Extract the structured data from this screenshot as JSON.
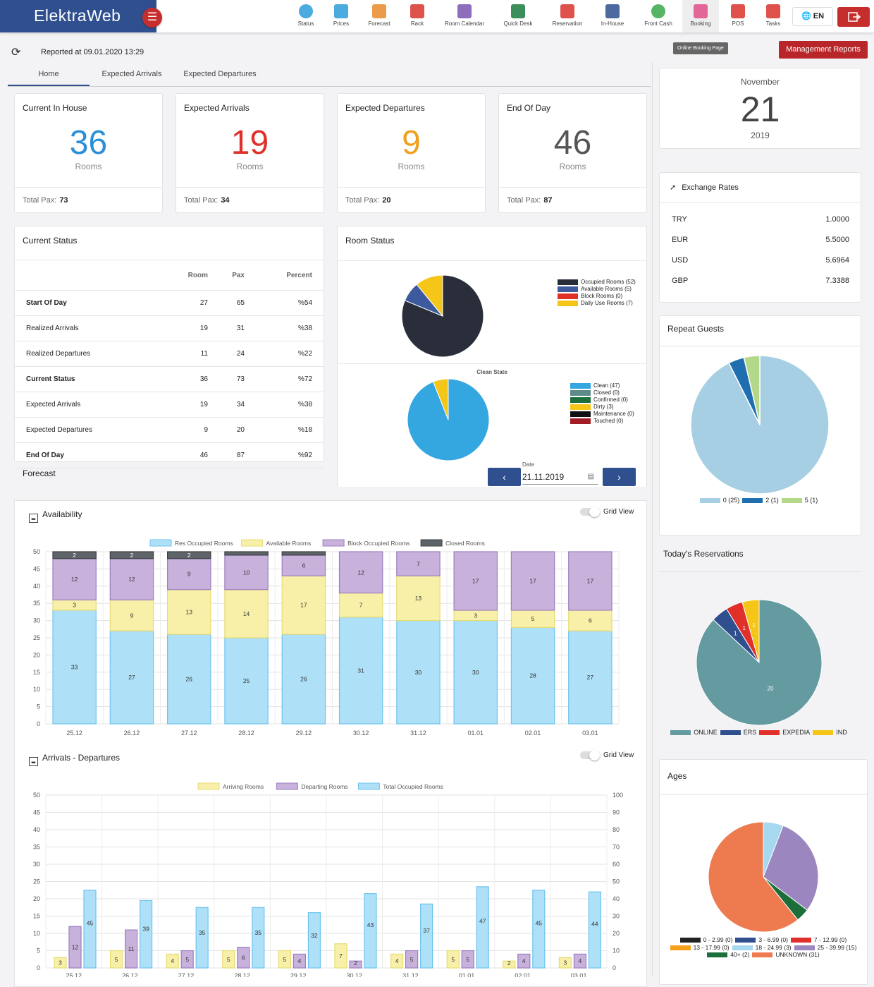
{
  "app": {
    "brand": "ElektraWeb",
    "lang": "EN"
  },
  "nav": [
    {
      "label": "Status",
      "icon": "status-icon",
      "color": "#2b9bd8"
    },
    {
      "label": "Prices",
      "icon": "prices-icon",
      "color": "#2b9bd8"
    },
    {
      "label": "Forecast",
      "icon": "forecast-icon",
      "color": "#e98a2c"
    },
    {
      "label": "Rack",
      "icon": "rack-icon",
      "color": "#d9342b"
    },
    {
      "label": "Room Calendar",
      "icon": "calendar-icon",
      "color": "#7a55b0"
    },
    {
      "label": "Quick Desk",
      "icon": "desk-icon",
      "color": "#1a7a3d"
    },
    {
      "label": "Reservation",
      "icon": "plane-icon",
      "color": "#d9342b"
    },
    {
      "label": "In-House",
      "icon": "bed-icon",
      "color": "#2f4f8f"
    },
    {
      "label": "Front Cash",
      "icon": "cash-icon",
      "color": "#3aa74a"
    },
    {
      "label": "Booking",
      "icon": "booking-icon",
      "color": "#e04e8a"
    },
    {
      "label": "POS",
      "icon": "pos-icon",
      "color": "#d9342b"
    },
    {
      "label": "Tasks",
      "icon": "tasks-icon",
      "color": "#d9342b"
    }
  ],
  "sub": {
    "reported": "Reported at 09.01.2020 13:29",
    "online": "Online Booking Page",
    "mgmt": "Management Reports"
  },
  "tabs": [
    "Home",
    "Expected Arrivals",
    "Expected Departures"
  ],
  "kpis": [
    {
      "title": "Current In House",
      "value": "36",
      "unit": "Rooms",
      "pax_label": "Total Pax:",
      "pax": "73",
      "color": "#2b8fd8"
    },
    {
      "title": "Expected Arrivals",
      "value": "19",
      "unit": "Rooms",
      "pax_label": "Total Pax:",
      "pax": "34",
      "color": "#e0302a"
    },
    {
      "title": "Expected Departures",
      "value": "9",
      "unit": "Rooms",
      "pax_label": "Total Pax:",
      "pax": "20",
      "color": "#f0a020"
    },
    {
      "title": "End Of Day",
      "value": "46",
      "unit": "Rooms",
      "pax_label": "Total Pax:",
      "pax": "87",
      "color": "#555"
    }
  ],
  "current_status": {
    "title": "Current Status",
    "headers": [
      "",
      "Room",
      "Pax",
      "Percent"
    ],
    "rows": [
      {
        "label": "Start Of Day",
        "room": "27",
        "pax": "65",
        "pct": "%54",
        "bold": true
      },
      {
        "label": "Realized Arrivals",
        "room": "19",
        "pax": "31",
        "pct": "%38",
        "bold": false
      },
      {
        "label": "Realized Departures",
        "room": "11",
        "pax": "24",
        "pct": "%22",
        "bold": false
      },
      {
        "label": "Current Status",
        "room": "36",
        "pax": "73",
        "pct": "%72",
        "bold": true
      },
      {
        "label": "Expected Arrivals",
        "room": "19",
        "pax": "34",
        "pct": "%38",
        "bold": false
      },
      {
        "label": "Expected Departures",
        "room": "9",
        "pax": "20",
        "pct": "%18",
        "bold": false
      },
      {
        "label": "End Of Day",
        "room": "46",
        "pax": "87",
        "pct": "%92",
        "bold": true
      }
    ]
  },
  "room_status": {
    "title": "Room Status",
    "clean_title": "Clean State",
    "date_label": "Date",
    "date": "21.11.2019",
    "legend1": [
      {
        "label": "Occupied Rooms (52)",
        "color": "#2a2e3a"
      },
      {
        "label": "Available Rooms (5)",
        "color": "#3d5a9e"
      },
      {
        "label": "Block Rooms (0)",
        "color": "#e0302a"
      },
      {
        "label": "Daily Use Rooms (7)",
        "color": "#f5c518"
      }
    ],
    "legend2": [
      {
        "label": "Clean (47)",
        "color": "#35a7e0"
      },
      {
        "label": "Closed (0)",
        "color": "#5e8a8a"
      },
      {
        "label": "Confirmed (0)",
        "color": "#1c6e3a"
      },
      {
        "label": "Dirty (3)",
        "color": "#f5c518"
      },
      {
        "label": "Maintenance (0)",
        "color": "#111"
      },
      {
        "label": "Touched (0)",
        "color": "#a11c24"
      }
    ]
  },
  "forecast": {
    "title": "Forecast",
    "availability": "Availability",
    "arrdep": "Arrivals - Departures",
    "grid_view": "Grid View"
  },
  "calendar": {
    "month": "November",
    "day": "21",
    "year": "2019"
  },
  "exchange": {
    "title": "Exchange Rates",
    "rates": [
      {
        "cur": "TRY",
        "val": "1.0000"
      },
      {
        "cur": "EUR",
        "val": "5.5000"
      },
      {
        "cur": "USD",
        "val": "5.6964"
      },
      {
        "cur": "GBP",
        "val": "7.3388"
      }
    ]
  },
  "repeat": {
    "title": "Repeat Guests"
  },
  "todays": {
    "title": "Today's Reservations"
  },
  "ages": {
    "title": "Ages"
  },
  "chart_data": [
    {
      "type": "pie",
      "name": "room-status",
      "slices": [
        {
          "label": "Occupied Rooms",
          "value": 52,
          "color": "#2a2e3a"
        },
        {
          "label": "Available Rooms",
          "value": 5,
          "color": "#3d5a9e"
        },
        {
          "label": "Block Rooms",
          "value": 0,
          "color": "#e0302a"
        },
        {
          "label": "Daily Use Rooms",
          "value": 7,
          "color": "#f5c518"
        }
      ]
    },
    {
      "type": "pie",
      "name": "clean-state",
      "slices": [
        {
          "label": "Clean",
          "value": 47,
          "color": "#35a7e0"
        },
        {
          "label": "Dirty",
          "value": 3,
          "color": "#f5c518"
        }
      ]
    },
    {
      "type": "bar",
      "name": "availability",
      "categories": [
        "25.12",
        "26.12",
        "27.12",
        "28.12",
        "29.12",
        "30.12",
        "31.12",
        "01.01",
        "02.01",
        "03.01"
      ],
      "ylim": [
        0,
        50
      ],
      "yticks": [
        0,
        5,
        10,
        15,
        20,
        25,
        30,
        35,
        40,
        45,
        50
      ],
      "series": [
        {
          "name": "Res Occupied Rooms",
          "color": "#aee0f7",
          "stroke": "#6fc4ee",
          "values": [
            33,
            27,
            26,
            25,
            26,
            31,
            30,
            30,
            28,
            27
          ]
        },
        {
          "name": "Available Rooms",
          "color": "#f8f0a8",
          "stroke": "#e7dc74",
          "values": [
            3,
            9,
            13,
            14,
            17,
            7,
            13,
            3,
            5,
            6
          ]
        },
        {
          "name": "Block Occupied Rooms",
          "color": "#c8b2dc",
          "stroke": "#9b7fbd",
          "values": [
            12,
            12,
            9,
            10,
            6,
            12,
            7,
            17,
            17,
            17
          ]
        },
        {
          "name": "Closed Rooms",
          "color": "#5e6468",
          "stroke": "#3a3f42",
          "values": [
            2,
            2,
            2,
            1,
            1,
            0,
            0,
            0,
            0,
            0
          ]
        }
      ],
      "labels": [
        [
          "33",
          "27",
          "26",
          "25",
          "26",
          "31",
          "30",
          "30",
          "28",
          "27"
        ],
        [
          "3",
          "9",
          "13",
          "14",
          "17",
          "7",
          "13",
          "3",
          "5",
          "6"
        ],
        [
          "12",
          "12",
          "9",
          "10",
          "6",
          "12",
          "7",
          "17",
          "17",
          "17"
        ],
        [
          "2",
          "2",
          "2",
          "",
          "",
          "",
          "",
          "",
          "",
          ""
        ]
      ]
    },
    {
      "type": "bar",
      "name": "arrivals-departures",
      "categories": [
        "25.12",
        "26.12",
        "27.12",
        "28.12",
        "29.12",
        "30.12",
        "31.12",
        "01.01",
        "02.01",
        "03.01"
      ],
      "ylim": [
        0,
        50
      ],
      "y2lim": [
        0,
        100
      ],
      "yticks": [
        0,
        5,
        10,
        15,
        20,
        25,
        30,
        35,
        40,
        45,
        50
      ],
      "y2ticks": [
        0,
        10,
        20,
        30,
        40,
        50,
        60,
        70,
        80,
        90,
        100
      ],
      "series": [
        {
          "name": "Arriving Rooms",
          "color": "#f8f0a8",
          "stroke": "#e7dc74",
          "values": [
            3,
            5,
            4,
            5,
            5,
            7,
            4,
            5,
            2,
            3
          ]
        },
        {
          "name": "Departing Rooms",
          "color": "#c8b2dc",
          "stroke": "#9b7fbd",
          "values": [
            12,
            11,
            5,
            6,
            4,
            2,
            5,
            5,
            4,
            4
          ]
        },
        {
          "name": "Total Occupied Rooms",
          "color": "#aee0f7",
          "stroke": "#6fc4ee",
          "values": [
            45,
            39,
            35,
            35,
            32,
            43,
            37,
            47,
            45,
            44
          ],
          "axis": "right"
        }
      ]
    },
    {
      "type": "pie",
      "name": "repeat-guests",
      "slices": [
        {
          "label": "0 (25)",
          "value": 25,
          "color": "#a6cfe3"
        },
        {
          "label": "2 (1)",
          "value": 1,
          "color": "#1f6fb0"
        },
        {
          "label": "5 (1)",
          "value": 1,
          "color": "#b4d88a"
        }
      ]
    },
    {
      "type": "pie",
      "name": "todays-reservations",
      "slices": [
        {
          "label": "ONLINE",
          "value": 20,
          "color": "#639ba0",
          "text": "20"
        },
        {
          "label": "ERS",
          "value": 1,
          "color": "#2f4f8f",
          "text": "1"
        },
        {
          "label": "EXPEDIA",
          "value": 1,
          "color": "#e0302a",
          "text": "1"
        },
        {
          "label": "IND",
          "value": 1,
          "color": "#f5c518",
          "text": "1"
        }
      ]
    },
    {
      "type": "pie",
      "name": "ages",
      "slices": [
        {
          "label": "UNKNOWN (31)",
          "value": 31,
          "color": "#ee7b4f"
        },
        {
          "label": "0 - 2.99 (0)",
          "value": 0,
          "color": "#222"
        },
        {
          "label": "3 - 6.99 (0)",
          "value": 0,
          "color": "#2f4f8f"
        },
        {
          "label": "7 - 12.99 (0)",
          "value": 0,
          "color": "#e0302a"
        },
        {
          "label": "13 - 17.99 (0)",
          "value": 0,
          "color": "#f5a018"
        },
        {
          "label": "18 - 24.99 (3)",
          "value": 3,
          "color": "#a6d8f0"
        },
        {
          "label": "25 - 39.99 (15)",
          "value": 15,
          "color": "#9b86c0"
        },
        {
          "label": "40+ (2)",
          "value": 2,
          "color": "#1c6e3a"
        }
      ]
    }
  ]
}
